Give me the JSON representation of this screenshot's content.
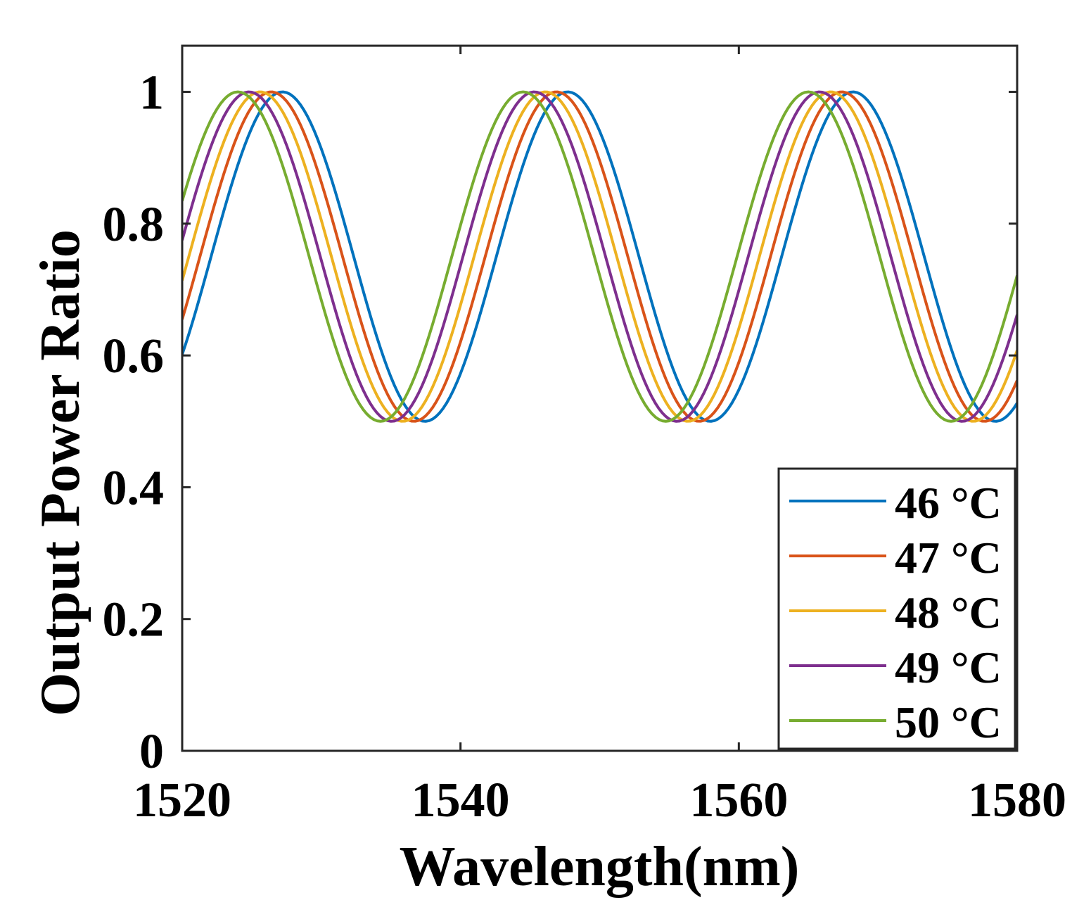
{
  "chart_data": {
    "type": "line",
    "title": "",
    "xlabel": "Wavelength(nm)",
    "ylabel": "Output Power Ratio",
    "xlim": [
      1520,
      1580
    ],
    "ylim": [
      0,
      1.07
    ],
    "xticks": [
      1520,
      1540,
      1560,
      1580
    ],
    "xtick_labels": [
      "1520",
      "1540",
      "1560",
      "1580"
    ],
    "yticks": [
      0,
      0.2,
      0.4,
      0.6,
      0.8,
      1
    ],
    "ytick_labels": [
      "0",
      "0.2",
      "0.4",
      "0.6",
      "0.8",
      "1"
    ],
    "grid": false,
    "legend_position": "bottom-right",
    "model": "ratio = 0.75 + 0.25*cos(2*pi*(wavelength - peak)/period)",
    "period_nm": 20.5,
    "sample_step_nm": 0.25,
    "series": [
      {
        "name": "46 °C",
        "color": "#0072BD",
        "peaks_nm": [
          1527.2,
          1547.7,
          1568.2
        ],
        "minima_nm": [
          1537.45,
          1557.95,
          1578.45
        ],
        "value_range": [
          0.5,
          1.0
        ]
      },
      {
        "name": "47 °C",
        "color": "#D95319",
        "peaks_nm": [
          1526.4,
          1546.9,
          1567.4
        ],
        "minima_nm": [
          1536.65,
          1557.15,
          1577.65
        ],
        "value_range": [
          0.5,
          1.0
        ]
      },
      {
        "name": "48 °C",
        "color": "#EDB120",
        "peaks_nm": [
          1525.6,
          1546.1,
          1566.6
        ],
        "minima_nm": [
          1535.85,
          1556.35,
          1576.85
        ],
        "value_range": [
          0.5,
          1.0
        ]
      },
      {
        "name": "49 °C",
        "color": "#7E2F8E",
        "peaks_nm": [
          1524.8,
          1545.3,
          1565.8
        ],
        "minima_nm": [
          1535.05,
          1555.55,
          1576.05
        ],
        "value_range": [
          0.5,
          1.0
        ]
      },
      {
        "name": "50 °C",
        "color": "#77AC30",
        "peaks_nm": [
          1524.0,
          1544.5,
          1565.0
        ],
        "minima_nm": [
          1534.25,
          1554.75,
          1575.25
        ],
        "value_range": [
          0.5,
          1.0
        ]
      }
    ]
  }
}
